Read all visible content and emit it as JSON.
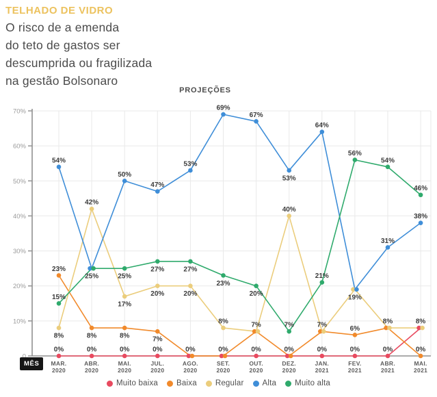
{
  "header": {
    "title": "TELHADO DE VIDRO",
    "subtitle_lines": [
      "O risco de a emenda",
      "do teto de gastos ser",
      "descumprida ou fragilizada",
      "na gestão Bolsonaro"
    ]
  },
  "chart_data": {
    "type": "line",
    "title": "PROJEÇÕES",
    "x_axis_title": "MÊS",
    "categories": [
      "MAR. 2020",
      "ABR. 2020",
      "MAI. 2020",
      "JUL. 2020",
      "AGO. 2020",
      "SET. 2020",
      "OUT. 2020",
      "DEZ. 2020",
      "JAN. 2021",
      "FEV. 2021",
      "ABR. 2021",
      "MAI. 2021"
    ],
    "y_tick_labels": [
      "0",
      "10%",
      "20%",
      "30%",
      "40%",
      "50%",
      "60%",
      "70%"
    ],
    "ylim": [
      0,
      70
    ],
    "grid": true,
    "legend_position": "bottom",
    "value_suffix": "%",
    "series": [
      {
        "name": "Muito baixa",
        "color": "#e84a5f",
        "values": [
          0,
          0,
          0,
          0,
          0,
          0,
          0,
          0,
          0,
          0,
          0,
          8
        ]
      },
      {
        "name": "Baixa",
        "color": "#f18a2b",
        "values": [
          23,
          8,
          8,
          7,
          0,
          0,
          7,
          0,
          7,
          6,
          8,
          0
        ]
      },
      {
        "name": "Regular",
        "color": "#ebcd7c",
        "values": [
          8,
          42,
          17,
          20,
          20,
          8,
          7,
          40,
          7,
          19,
          8,
          8
        ]
      },
      {
        "name": "Alta",
        "color": "#3f8ed8",
        "values": [
          54,
          25,
          50,
          47,
          53,
          69,
          67,
          53,
          64,
          19,
          31,
          38
        ]
      },
      {
        "name": "Muito alta",
        "color": "#2faa6c",
        "values": [
          15,
          25,
          25,
          27,
          27,
          23,
          20,
          7,
          21,
          56,
          54,
          46
        ]
      }
    ]
  },
  "colors": {
    "title_gold": "#ecc25e",
    "subtitle_gray": "#4b4b4b",
    "axis_line_gray": "#8f8f8f",
    "axis_text_gray": "#9b9b9b",
    "grid_gray": "#e9e9e9",
    "data_label_dark": "#3b3b3b"
  }
}
